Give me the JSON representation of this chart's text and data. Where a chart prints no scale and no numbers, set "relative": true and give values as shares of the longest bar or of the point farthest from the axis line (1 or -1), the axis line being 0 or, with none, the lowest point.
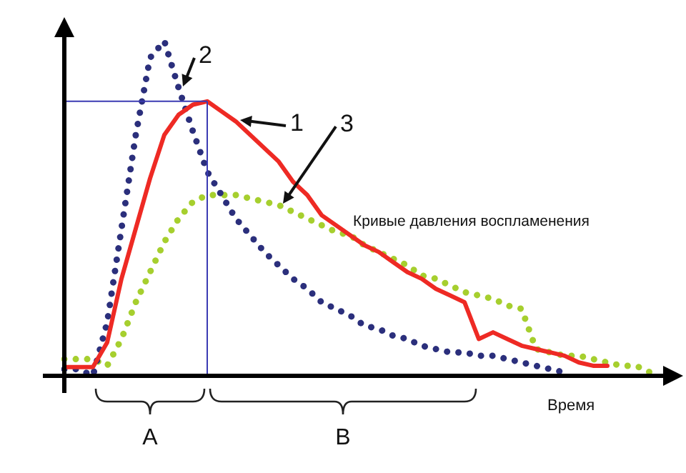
{
  "chart_data": {
    "type": "line",
    "relative": true,
    "xlabel": "Время",
    "legend": false,
    "marker": "none",
    "categories": [
      null,
      null,
      null,
      null,
      null,
      null,
      null,
      null,
      null,
      null,
      null,
      null,
      null,
      null,
      null,
      null,
      null,
      null,
      null,
      null,
      null,
      null,
      null,
      null,
      null,
      null,
      null,
      null,
      null,
      null,
      null,
      null,
      null,
      null,
      null,
      null,
      null,
      null,
      null,
      null,
      null,
      null
    ],
    "series": [
      {
        "name": "1",
        "color": "#ee2a24",
        "line_style": "solid",
        "values": [
          0.026,
          0.026,
          0.026,
          0.1,
          0.29,
          0.44,
          0.59,
          0.72,
          0.78,
          0.81,
          0.82,
          0.79,
          0.76,
          0.72,
          0.68,
          0.64,
          0.58,
          0.54,
          0.48,
          0.45,
          0.42,
          0.39,
          0.37,
          0.34,
          0.31,
          0.29,
          0.26,
          0.24,
          0.22,
          0.11,
          0.13,
          0.11,
          0.09,
          0.08,
          0.07,
          0.06,
          0.04,
          0.03,
          0.03,
          null,
          null,
          null
        ]
      },
      {
        "name": "2",
        "color": "#2b2f7c",
        "line_style": "dotted",
        "values": [
          0.02,
          0.02,
          0,
          0.16,
          0.44,
          0.72,
          0.95,
          1,
          0.86,
          0.73,
          0.61,
          0.54,
          0.47,
          0.42,
          0.37,
          0.33,
          0.29,
          0.26,
          0.22,
          0.2,
          0.18,
          0.15,
          0.14,
          0.12,
          0.11,
          0.09,
          0.08,
          0.07,
          0.07,
          0.06,
          0.06,
          0.05,
          0.04,
          0.03,
          0.02,
          0.01,
          null,
          null,
          null,
          null,
          null,
          null
        ]
      },
      {
        "name": "3",
        "color": "#a6cf2e",
        "line_style": "dotted",
        "values": [
          0.05,
          0.05,
          0.05,
          0.03,
          0.11,
          0.22,
          0.31,
          0.4,
          0.47,
          0.52,
          0.54,
          0.54,
          0.54,
          0.53,
          0.52,
          0.51,
          0.49,
          0.47,
          0.45,
          0.43,
          0.42,
          0.39,
          0.37,
          0.35,
          0.33,
          0.3,
          0.29,
          0.27,
          0.25,
          0.24,
          0.23,
          0.21,
          0.2,
          0.08,
          0.07,
          0.06,
          0.06,
          0.05,
          0.04,
          0.03,
          0.03,
          0.01
        ]
      }
    ],
    "ref_lines": [
      {
        "axis": "y",
        "value": 0.82,
        "color": "#3b3bb3"
      }
    ],
    "annotations": [
      "Кривые давления воспламенения",
      "A",
      "B"
    ]
  }
}
